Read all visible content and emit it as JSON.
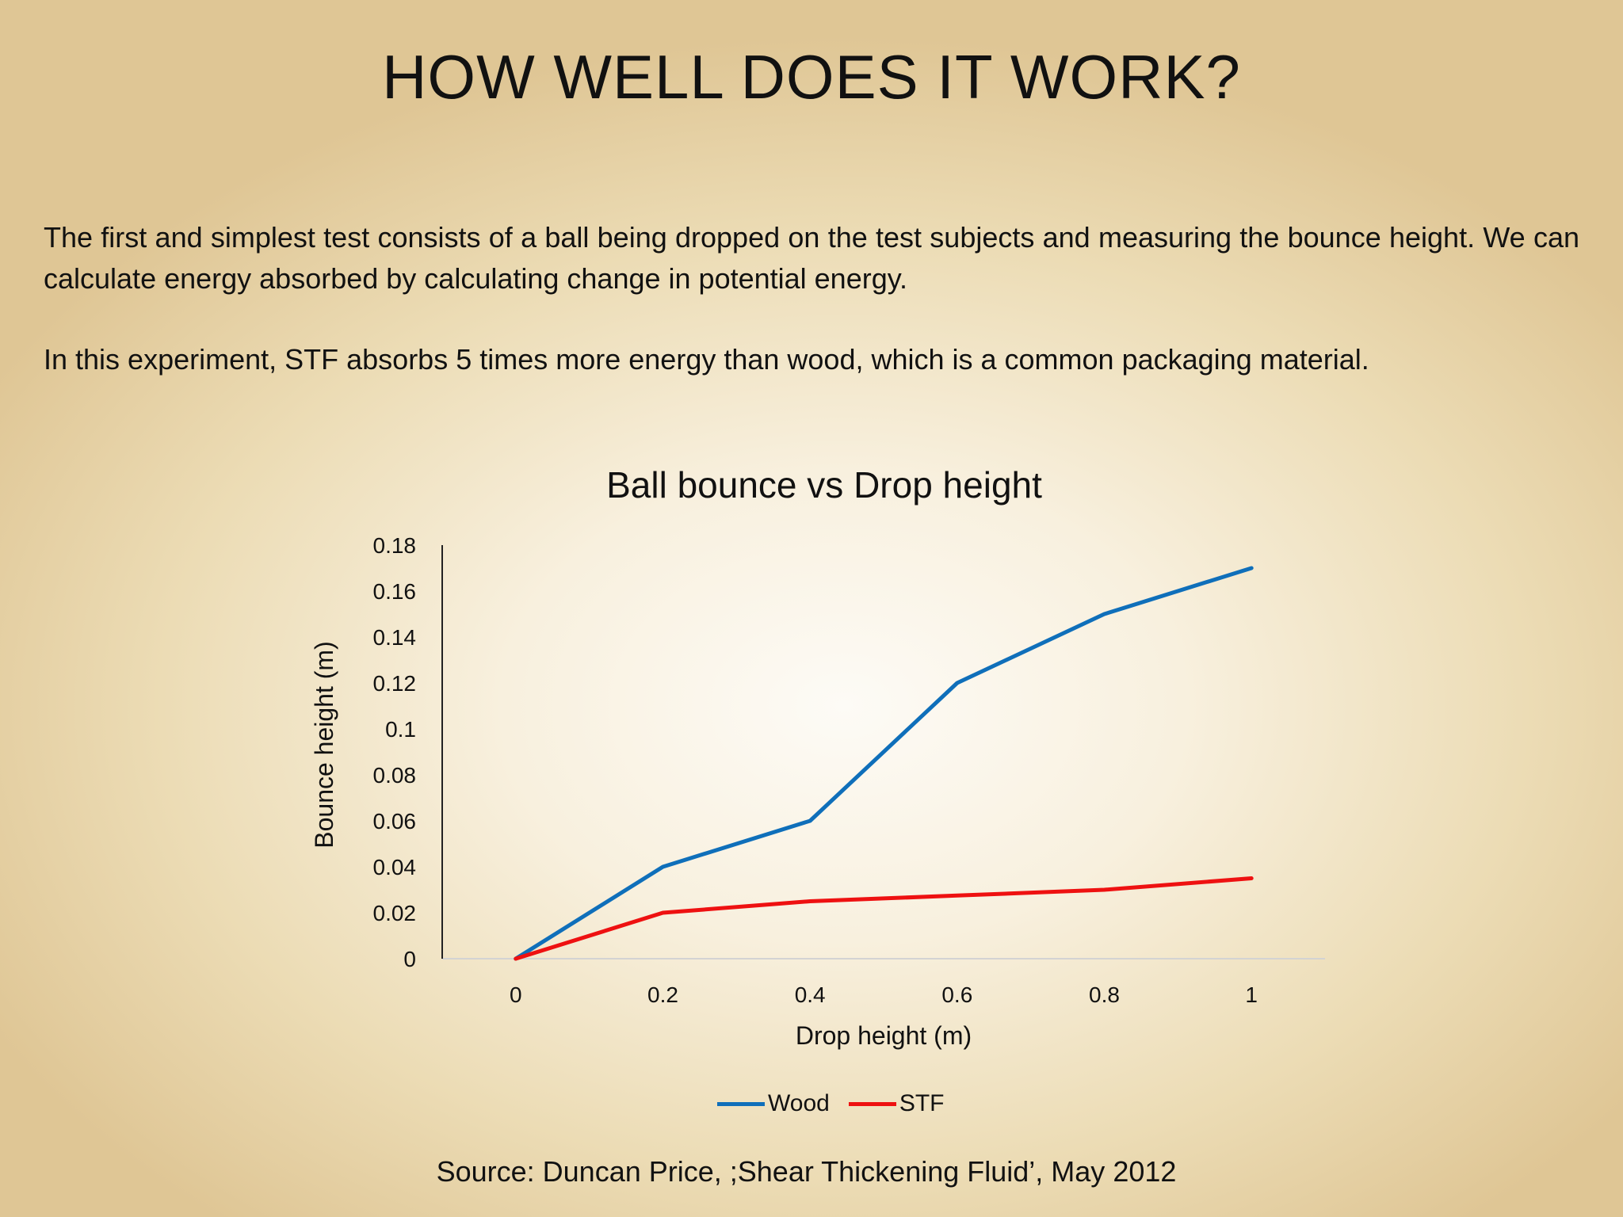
{
  "slide": {
    "title": "HOW WELL DOES IT WORK?",
    "paragraph1": "The first and simplest test consists of a ball being dropped on the test subjects and measuring the bounce height. We can calculate energy absorbed by calculating change in potential energy.",
    "paragraph2": "In this experiment, STF absorbs 5 times more energy than wood, which is a common packaging material.",
    "source": "Source: Duncan Price, ;Shear Thickening Fluid’, May 2012"
  },
  "chart_data": {
    "type": "line",
    "title": "Ball bounce vs Drop height",
    "xlabel": "Drop height (m)",
    "ylabel": "Bounce height (m)",
    "x": [
      0,
      0.2,
      0.4,
      0.6,
      0.8,
      1
    ],
    "x_tick_labels": [
      "0",
      "0.2",
      "0.4",
      "0.6",
      "0.8",
      "1"
    ],
    "y_tick_labels": [
      "0",
      "0.02",
      "0.04",
      "0.06",
      "0.08",
      "0.1",
      "0.12",
      "0.14",
      "0.16",
      "0.18"
    ],
    "xlim": [
      -0.1,
      1.1
    ],
    "ylim": [
      0,
      0.18
    ],
    "grid": false,
    "legend_position": "bottom",
    "series": [
      {
        "name": "Wood",
        "color": "#0f6fba",
        "values": [
          0,
          0.04,
          0.06,
          0.12,
          0.15,
          0.17
        ]
      },
      {
        "name": "STF",
        "color": "#ee1111",
        "values": [
          0,
          0.02,
          0.025,
          0.0275,
          0.03,
          0.035
        ]
      }
    ]
  }
}
